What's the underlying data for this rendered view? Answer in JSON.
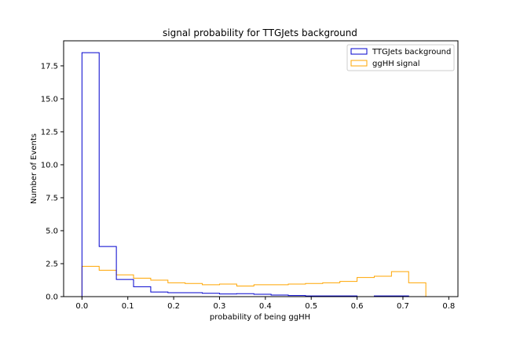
{
  "chart_data": {
    "type": "histogram",
    "title": "signal probability for TTGJets background",
    "xlabel": "probability of being ggHH",
    "ylabel": "Number of Events",
    "xlim": [
      -0.04,
      0.82
    ],
    "ylim": [
      0,
      19.4
    ],
    "xticks": [
      0.0,
      0.1,
      0.2,
      0.3,
      0.4,
      0.5,
      0.6,
      0.7,
      0.8
    ],
    "xtick_labels": [
      "0.0",
      "0.1",
      "0.2",
      "0.3",
      "0.4",
      "0.5",
      "0.6",
      "0.7",
      "0.8"
    ],
    "yticks": [
      0.0,
      2.5,
      5.0,
      7.5,
      10.0,
      12.5,
      15.0,
      17.5
    ],
    "ytick_labels": [
      "0.0",
      "2.5",
      "5.0",
      "7.5",
      "10.0",
      "12.5",
      "15.0",
      "17.5"
    ],
    "grid": false,
    "legend_position": "top-right",
    "series": [
      {
        "name": "TTGJets background",
        "color": "#0000cd",
        "bin_edges": [
          0.0,
          0.0375,
          0.075,
          0.1125,
          0.15,
          0.1875,
          0.225,
          0.2625,
          0.3,
          0.3375,
          0.375,
          0.4125,
          0.45,
          0.4875,
          0.525,
          0.5625,
          0.6,
          0.6375,
          0.675,
          0.7125
        ],
        "values": [
          18.5,
          3.8,
          1.3,
          0.75,
          0.35,
          0.3,
          0.3,
          0.25,
          0.2,
          0.22,
          0.18,
          0.12,
          0.08,
          0.05,
          0.05,
          0.05,
          0.0,
          0.05,
          0.05
        ]
      },
      {
        "name": "ggHH signal",
        "color": "#ffa500",
        "bin_edges": [
          0.0,
          0.0375,
          0.075,
          0.1125,
          0.15,
          0.1875,
          0.225,
          0.2625,
          0.3,
          0.3375,
          0.375,
          0.4125,
          0.45,
          0.4875,
          0.525,
          0.5625,
          0.6,
          0.6375,
          0.675,
          0.7125,
          0.75,
          0.7875
        ],
        "values": [
          2.3,
          2.0,
          1.65,
          1.4,
          1.25,
          1.05,
          1.0,
          0.9,
          0.95,
          0.8,
          0.9,
          0.9,
          0.95,
          1.0,
          1.05,
          1.15,
          1.45,
          1.55,
          1.9,
          1.05,
          0.0
        ]
      }
    ]
  }
}
